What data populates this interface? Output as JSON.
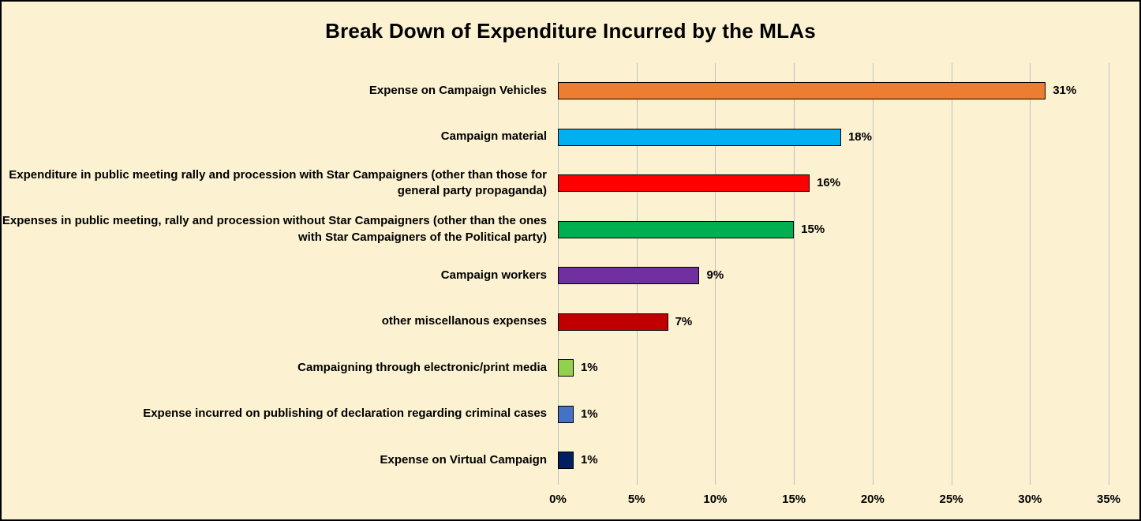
{
  "chart": {
    "title": "Break Down of Expenditure Incurred by the MLAs"
  },
  "chart_data": {
    "type": "bar",
    "orientation": "horizontal",
    "title": "Break Down of Expenditure Incurred by the MLAs",
    "categories": [
      "Expense on Campaign Vehicles",
      "Campaign material",
      "Expenditure in public meeting rally and  procession with Star Campaigners (other than those for general party propaganda)",
      "Expenses in public meeting, rally and procession without Star Campaigners (other than the ones with Star Campaigners of the Political party)",
      "Campaign workers",
      "other miscellanous expenses",
      "Campaigning through electronic/print media",
      "Expense incurred on publishing of declaration regarding criminal cases",
      "Expense on Virtual Campaign"
    ],
    "values": [
      31,
      18,
      16,
      15,
      9,
      7,
      1,
      1,
      1
    ],
    "value_labels": [
      "31%",
      "18%",
      "16%",
      "15%",
      "9%",
      "7%",
      "1%",
      "1%",
      "1%"
    ],
    "bar_colors": [
      "#ED7D31",
      "#00B0F0",
      "#FF0000",
      "#00B050",
      "#7030A0",
      "#C00000",
      "#92D050",
      "#4472C4",
      "#002060"
    ],
    "xlabel": "",
    "ylabel": "",
    "xlim": [
      0,
      35
    ],
    "x_ticks": [
      "0%",
      "5%",
      "10%",
      "15%",
      "20%",
      "25%",
      "30%",
      "35%"
    ],
    "grid": true,
    "legend": "none",
    "background_color": "#FCF2D2",
    "gridline_color": "#BFBFBF",
    "border_color": "#000000"
  }
}
